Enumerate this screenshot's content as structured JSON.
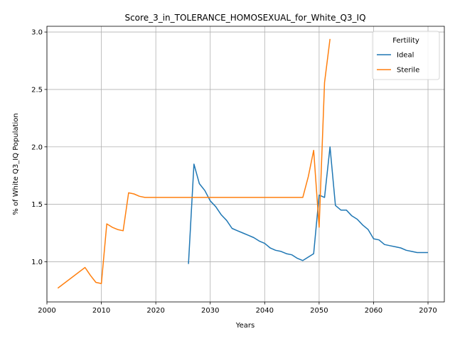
{
  "chart_data": {
    "type": "line",
    "title": "Score_3_in_TOLERANCE_HOMOSEXUAL_for_White_Q3_IQ",
    "xlabel": "Years",
    "ylabel": "% of White Q3_IQ Population",
    "xlim": [
      2000,
      2073
    ],
    "ylim": [
      0.65,
      3.05
    ],
    "xticks": [
      2000,
      2010,
      2020,
      2030,
      2040,
      2050,
      2060,
      2070
    ],
    "yticks": [
      1.0,
      1.5,
      2.0,
      2.5,
      3.0
    ],
    "xtick_labels": [
      "2000",
      "2010",
      "2020",
      "2030",
      "2040",
      "2050",
      "2060",
      "2070"
    ],
    "ytick_labels": [
      "1.0",
      "1.5",
      "2.0",
      "2.5",
      "3.0"
    ],
    "grid": true,
    "legend": {
      "title": "Fertility",
      "placement": "top-right"
    },
    "series": [
      {
        "name": "Ideal",
        "color": "#1f77b4",
        "x": [
          2026,
          2027,
          2028,
          2029,
          2030,
          2031,
          2032,
          2033,
          2034,
          2035,
          2036,
          2037,
          2038,
          2039,
          2040,
          2041,
          2042,
          2043,
          2044,
          2045,
          2046,
          2047,
          2048,
          2049,
          2050,
          2051,
          2052,
          2053,
          2054,
          2055,
          2056,
          2057,
          2058,
          2059,
          2060,
          2061,
          2062,
          2063,
          2064,
          2065,
          2066,
          2067,
          2068,
          2069,
          2070
        ],
        "y": [
          0.98,
          1.85,
          1.68,
          1.62,
          1.53,
          1.48,
          1.41,
          1.36,
          1.29,
          1.27,
          1.25,
          1.23,
          1.21,
          1.18,
          1.16,
          1.12,
          1.1,
          1.09,
          1.07,
          1.06,
          1.03,
          1.01,
          1.04,
          1.07,
          1.58,
          1.56,
          2.0,
          1.49,
          1.45,
          1.45,
          1.4,
          1.37,
          1.32,
          1.28,
          1.2,
          1.19,
          1.15,
          1.14,
          1.13,
          1.12,
          1.1,
          1.09,
          1.08,
          1.08,
          1.08
        ]
      },
      {
        "name": "Sterile",
        "color": "#ff7f0e",
        "x": [
          2002,
          2007,
          2008,
          2009,
          2010,
          2011,
          2012,
          2013,
          2014,
          2015,
          2016,
          2017,
          2018,
          2019,
          2020,
          2025,
          2030,
          2035,
          2040,
          2045,
          2047,
          2048,
          2049,
          2050,
          2051,
          2052
        ],
        "y": [
          0.77,
          0.95,
          0.88,
          0.82,
          0.81,
          1.33,
          1.3,
          1.28,
          1.27,
          1.6,
          1.59,
          1.57,
          1.56,
          1.56,
          1.56,
          1.56,
          1.56,
          1.56,
          1.56,
          1.56,
          1.56,
          1.74,
          1.97,
          1.3,
          2.56,
          2.94
        ]
      }
    ]
  }
}
